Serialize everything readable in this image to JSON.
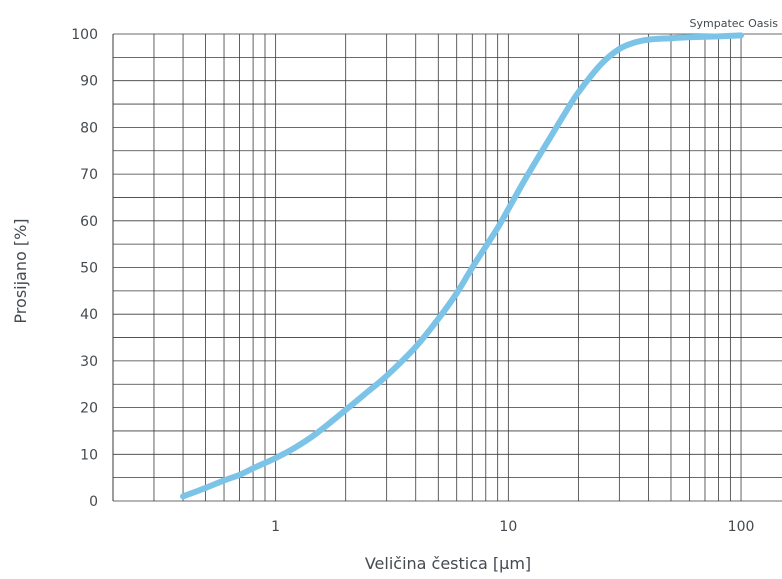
{
  "chart_data": {
    "type": "line",
    "annotation": "Sympatec Oasis",
    "xlabel": "Veličina čestica [µm]",
    "ylabel": "Prosijano [%]",
    "x_scale": "log",
    "xlim": [
      0.2,
      150
    ],
    "ylim": [
      0,
      100
    ],
    "x_ticks": [
      {
        "value": 1,
        "label": "1"
      },
      {
        "value": 10,
        "label": "10"
      },
      {
        "value": 100,
        "label": "100"
      }
    ],
    "y_ticks": [
      {
        "value": 0,
        "label": "0"
      },
      {
        "value": 10,
        "label": "10"
      },
      {
        "value": 20,
        "label": "20"
      },
      {
        "value": 30,
        "label": "30"
      },
      {
        "value": 40,
        "label": "40"
      },
      {
        "value": 50,
        "label": "50"
      },
      {
        "value": 60,
        "label": "60"
      },
      {
        "value": 70,
        "label": "70"
      },
      {
        "value": 80,
        "label": "80"
      },
      {
        "value": 90,
        "label": "90"
      },
      {
        "value": 100,
        "label": "100"
      }
    ],
    "grid": true,
    "line_color": "#7cc3e8",
    "series": [
      {
        "x": [
          0.4,
          0.5,
          0.6,
          0.7,
          0.8,
          1.0,
          1.2,
          1.5,
          2.0,
          2.5,
          3.0,
          4.0,
          5.0,
          6.0,
          7.0,
          8.0,
          9.0,
          10,
          12,
          15,
          18,
          20,
          25,
          30,
          35,
          40,
          50,
          60,
          80,
          100
        ],
        "y": [
          1,
          2.8,
          4.4,
          5.6,
          7.0,
          9.2,
          11.3,
          14.5,
          19.5,
          23.5,
          26.8,
          33,
          39,
          44.5,
          50,
          54.5,
          58.5,
          62.5,
          69.5,
          77.5,
          84,
          87.5,
          93.5,
          96.8,
          98.2,
          98.8,
          99.1,
          99.3,
          99.5,
          99.7
        ]
      }
    ]
  }
}
